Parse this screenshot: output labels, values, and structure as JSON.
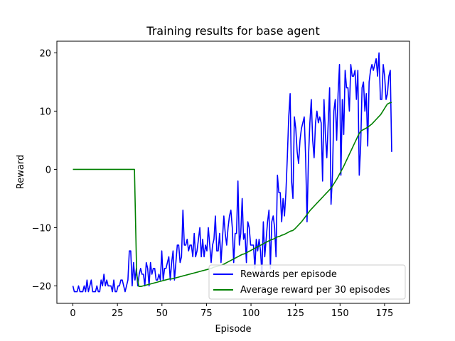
{
  "chart_data": {
    "type": "line",
    "title": "Training results for base agent",
    "xlabel": "Episode",
    "ylabel": "Reward",
    "xlim": [
      -9,
      189
    ],
    "ylim": [
      -23,
      22
    ],
    "xticks": [
      0,
      25,
      50,
      75,
      100,
      125,
      150,
      175
    ],
    "yticks": [
      -20,
      -10,
      0,
      10,
      20
    ],
    "grid": false,
    "legend_position": "lower-right",
    "series": [
      {
        "name": "Rewards per episode",
        "color": "#0000ff",
        "x_start": 0,
        "values": [
          -20,
          -21,
          -21,
          -21,
          -20,
          -21,
          -21,
          -21,
          -20,
          -21,
          -19,
          -21,
          -20,
          -19,
          -21,
          -21,
          -21,
          -20,
          -21,
          -21,
          -19,
          -20,
          -18,
          -20,
          -19,
          -20,
          -20,
          -20,
          -21,
          -19,
          -21,
          -21,
          -20,
          -20,
          -19,
          -19,
          -20,
          -21,
          -20,
          -19,
          -14,
          -14,
          -20,
          -16,
          -19,
          -17,
          -20,
          -18,
          -17,
          -18,
          -18,
          -20,
          -16,
          -17,
          -20,
          -16,
          -18,
          -17,
          -17,
          -19,
          -19,
          -18,
          -19,
          -14,
          -19,
          -17,
          -17,
          -16,
          -15,
          -19,
          -16,
          -14,
          -19,
          -16,
          -13,
          -13,
          -16,
          -15,
          -7,
          -13,
          -13,
          -12,
          -14,
          -13,
          -13,
          -15,
          -11,
          -15,
          -14,
          -12,
          -10,
          -15,
          -12,
          -15,
          -13,
          -14,
          -10,
          -13,
          -16,
          -13,
          -12,
          -8,
          -14,
          -14,
          -11,
          -16,
          -12,
          -8,
          -11,
          -13,
          -10,
          -8,
          -7,
          -10,
          -16,
          -11,
          -11,
          -2,
          -13,
          -11,
          -5,
          -12,
          -11,
          -16,
          -9,
          -10,
          -13,
          -13,
          -13,
          -17,
          -12,
          -14,
          -12,
          -14,
          -18,
          -9,
          -15,
          -12,
          -9,
          -7,
          -17,
          -9,
          -8,
          -10,
          -15,
          -1,
          -4,
          -4,
          -9,
          -5,
          -8,
          -4,
          2,
          9,
          13,
          -2,
          -5,
          9,
          7,
          3,
          1,
          5,
          7,
          8,
          9,
          2,
          -9,
          2,
          8,
          12,
          5,
          2,
          8,
          10,
          8,
          9,
          8,
          -2,
          12,
          6,
          2,
          8,
          14,
          -6,
          -1,
          10,
          12,
          5,
          13,
          18,
          -1,
          12,
          6,
          17,
          14,
          14,
          10,
          18,
          16,
          16,
          17,
          12,
          17,
          -1,
          4,
          14,
          15,
          10,
          13,
          4,
          15,
          17,
          18,
          17,
          18,
          19,
          16,
          20,
          12,
          12,
          18,
          16,
          12,
          13,
          16,
          17,
          3
        ],
        "values_note": ""
      },
      {
        "name": "Average reward per 30 episodes",
        "color": "#008000",
        "x_start": 0,
        "values": [
          0,
          0,
          0,
          0,
          0,
          0,
          0,
          0,
          0,
          0,
          0,
          0,
          0,
          0,
          0,
          0,
          0,
          0,
          0,
          0,
          0,
          0,
          0,
          0,
          0,
          0,
          0,
          0,
          0,
          -18,
          -20.1,
          -20.1,
          -20,
          -19.9,
          -19.8,
          -19.7,
          -19.6,
          -19.5,
          -19.4,
          -19.3,
          -19.2,
          -19.1,
          -19.0,
          -18.9,
          -18.8,
          -18.8,
          -18.7,
          -18.6,
          -18.5,
          -18.4,
          -18.3,
          -18.2,
          -18.1,
          -18.0,
          -17.9,
          -17.8,
          -17.7,
          -17.6,
          -17.5,
          -17.4,
          -17.3,
          -17.2,
          -17.1,
          -17.0,
          -16.8,
          -16.7,
          -16.6,
          -16.5,
          -16.4,
          -16.2,
          -16.0,
          -15.8,
          -15.6,
          -15.4,
          -15.2,
          -15.0,
          -14.8,
          -14.6,
          -14.5,
          -14.3,
          -14.1,
          -13.9,
          -13.7,
          -13.5,
          -13.3,
          -13.1,
          -12.9,
          -12.7,
          -12.5,
          -12.3,
          -12.1,
          -12.0,
          -11.8,
          -11.6,
          -11.5,
          -11.3,
          -11.2,
          -11.0,
          -10.8,
          -10.6,
          -10.5,
          -10.2,
          -9.8,
          -9.4,
          -9.0,
          -8.5,
          -8.0,
          -7.5,
          -7.0,
          -6.6,
          -6.2,
          -5.8,
          -5.4,
          -5.0,
          -4.6,
          -4.2,
          -3.8,
          -3.4,
          -2.9,
          -2.3,
          -1.7,
          -1.0,
          -0.3,
          0.4,
          1.2,
          2.0,
          2.8,
          3.6,
          4.4,
          5.2,
          6.0,
          6.6,
          6.8,
          7.0,
          7.2,
          7.5,
          7.8,
          8.2,
          8.6,
          9.0,
          9.4,
          10.0,
          10.6,
          11.2,
          11.4,
          11.5
        ],
        "values_note": ""
      }
    ]
  }
}
